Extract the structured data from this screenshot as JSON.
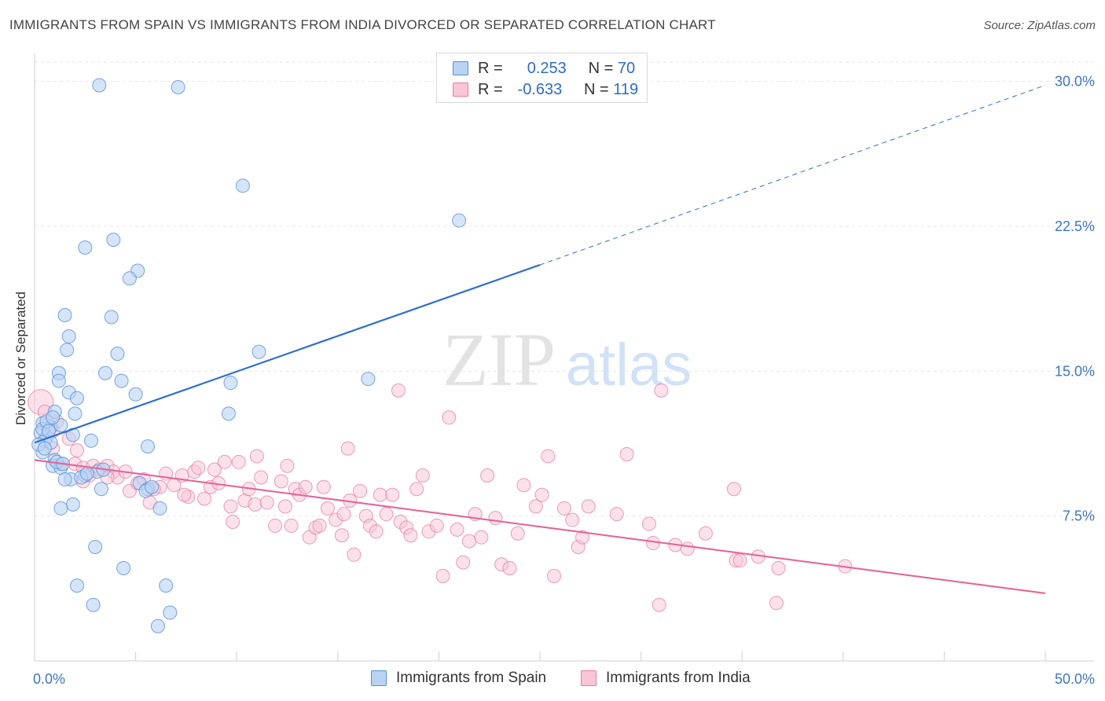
{
  "title": "IMMIGRANTS FROM SPAIN VS IMMIGRANTS FROM INDIA DIVORCED OR SEPARATED CORRELATION CHART",
  "source": "Source: ZipAtlas.com",
  "watermark": {
    "zip": "ZIP",
    "atlas": "atlas"
  },
  "legend": {
    "r_label": "R =",
    "n_label": "N =",
    "spain": {
      "r": "0.253",
      "n": "70"
    },
    "india": {
      "r": "-0.633",
      "n": "119"
    }
  },
  "colors": {
    "spain_fill": "#b9d3f3",
    "spain_stroke": "#5a8ed8",
    "spain_line": "#2f6fce",
    "india_fill": "#f8c6d6",
    "india_stroke": "#e67c9f",
    "india_line": "#e4679a",
    "axis_label": "#3f75c9"
  },
  "chart_data": {
    "type": "scatter",
    "title": "IMMIGRANTS FROM SPAIN VS IMMIGRANTS FROM INDIA DIVORCED OR SEPARATED CORRELATION CHART",
    "xlabel": "",
    "ylabel": "Divorced or Separated",
    "xlim": [
      0,
      50
    ],
    "ylim": [
      0,
      31
    ],
    "x_tick_labels": [
      "0.0%",
      "50.0%"
    ],
    "y_ticks": [
      7.5,
      15.0,
      22.5,
      30.0
    ],
    "y_tick_labels": [
      "7.5%",
      "15.0%",
      "22.5%",
      "30.0%"
    ],
    "grid": true,
    "legend_position": "top-center",
    "series": [
      {
        "name": "Immigrants from Spain",
        "trend": {
          "x": [
            0,
            25
          ],
          "y": [
            11.3,
            20.5
          ],
          "dashed_to": [
            50,
            29.8
          ]
        },
        "points": [
          [
            3.2,
            29.8
          ],
          [
            7.1,
            29.7
          ],
          [
            10.3,
            24.6
          ],
          [
            21.0,
            22.8
          ],
          [
            2.5,
            21.4
          ],
          [
            3.9,
            21.8
          ],
          [
            5.1,
            20.2
          ],
          [
            4.7,
            19.8
          ],
          [
            1.5,
            17.9
          ],
          [
            3.8,
            17.8
          ],
          [
            1.7,
            16.8
          ],
          [
            1.6,
            16.1
          ],
          [
            4.1,
            15.9
          ],
          [
            11.1,
            16.0
          ],
          [
            1.2,
            14.9
          ],
          [
            3.5,
            14.9
          ],
          [
            1.2,
            14.5
          ],
          [
            4.3,
            14.5
          ],
          [
            9.7,
            14.4
          ],
          [
            16.5,
            14.6
          ],
          [
            1.7,
            13.9
          ],
          [
            5.0,
            13.8
          ],
          [
            2.1,
            13.6
          ],
          [
            1.0,
            12.9
          ],
          [
            2.0,
            12.8
          ],
          [
            9.6,
            12.8
          ],
          [
            0.4,
            12.3
          ],
          [
            0.8,
            12.1
          ],
          [
            1.3,
            12.2
          ],
          [
            0.3,
            11.8
          ],
          [
            0.6,
            11.6
          ],
          [
            1.9,
            11.7
          ],
          [
            0.5,
            11.4
          ],
          [
            0.8,
            11.3
          ],
          [
            2.8,
            11.4
          ],
          [
            0.4,
            10.8
          ],
          [
            5.6,
            11.1
          ],
          [
            1.0,
            10.4
          ],
          [
            0.9,
            10.1
          ],
          [
            1.3,
            10.0
          ],
          [
            3.1,
            9.8
          ],
          [
            2.5,
            9.6
          ],
          [
            1.8,
            9.4
          ],
          [
            2.3,
            9.5
          ],
          [
            1.5,
            9.4
          ],
          [
            5.2,
            9.2
          ],
          [
            5.6,
            8.9
          ],
          [
            3.3,
            8.9
          ],
          [
            5.5,
            8.8
          ],
          [
            1.9,
            8.1
          ],
          [
            1.3,
            7.9
          ],
          [
            6.2,
            7.9
          ],
          [
            3.0,
            5.9
          ],
          [
            4.4,
            4.8
          ],
          [
            2.1,
            3.9
          ],
          [
            6.5,
            3.9
          ],
          [
            2.9,
            2.9
          ],
          [
            6.7,
            2.5
          ],
          [
            6.1,
            1.8
          ],
          [
            0.4,
            12.0
          ],
          [
            0.6,
            12.4
          ],
          [
            0.2,
            11.2
          ],
          [
            1.1,
            10.3
          ],
          [
            0.7,
            11.9
          ],
          [
            2.6,
            9.7
          ],
          [
            5.8,
            9.0
          ],
          [
            1.4,
            10.2
          ],
          [
            0.9,
            12.6
          ],
          [
            0.5,
            11.0
          ],
          [
            3.4,
            9.9
          ]
        ]
      },
      {
        "name": "Immigrants from India",
        "trend": {
          "x": [
            0,
            50
          ],
          "y": [
            10.4,
            3.5
          ]
        },
        "points": [
          [
            0.3,
            13.4
          ],
          [
            0.5,
            12.9
          ],
          [
            0.6,
            12.2
          ],
          [
            0.9,
            11.9
          ],
          [
            1.1,
            12.4
          ],
          [
            1.7,
            11.5
          ],
          [
            0.9,
            11.0
          ],
          [
            2.1,
            10.9
          ],
          [
            2.0,
            10.2
          ],
          [
            2.4,
            10.0
          ],
          [
            2.9,
            10.1
          ],
          [
            3.2,
            9.9
          ],
          [
            3.6,
            10.1
          ],
          [
            3.9,
            9.8
          ],
          [
            2.7,
            9.6
          ],
          [
            4.1,
            9.5
          ],
          [
            4.5,
            9.8
          ],
          [
            4.7,
            8.8
          ],
          [
            5.1,
            9.2
          ],
          [
            5.4,
            9.4
          ],
          [
            5.7,
            8.2
          ],
          [
            6.2,
            9.0
          ],
          [
            6.5,
            9.7
          ],
          [
            6.9,
            9.1
          ],
          [
            7.3,
            9.6
          ],
          [
            7.6,
            8.5
          ],
          [
            7.9,
            9.8
          ],
          [
            8.1,
            10.0
          ],
          [
            8.4,
            8.4
          ],
          [
            8.7,
            9.0
          ],
          [
            9.1,
            9.2
          ],
          [
            9.4,
            10.3
          ],
          [
            9.7,
            8.0
          ],
          [
            9.8,
            7.2
          ],
          [
            10.1,
            10.3
          ],
          [
            10.4,
            8.3
          ],
          [
            10.6,
            8.9
          ],
          [
            10.9,
            8.1
          ],
          [
            11.2,
            9.5
          ],
          [
            11.5,
            8.2
          ],
          [
            11.9,
            7.0
          ],
          [
            12.2,
            9.3
          ],
          [
            12.4,
            8.0
          ],
          [
            12.7,
            7.0
          ],
          [
            12.9,
            8.9
          ],
          [
            13.1,
            8.6
          ],
          [
            13.4,
            9.0
          ],
          [
            13.6,
            6.4
          ],
          [
            13.9,
            6.9
          ],
          [
            14.1,
            7.0
          ],
          [
            14.3,
            9.0
          ],
          [
            14.5,
            7.9
          ],
          [
            14.9,
            7.3
          ],
          [
            15.2,
            6.5
          ],
          [
            15.3,
            7.6
          ],
          [
            15.5,
            11.0
          ],
          [
            15.6,
            8.3
          ],
          [
            15.8,
            5.5
          ],
          [
            16.1,
            8.8
          ],
          [
            16.4,
            7.5
          ],
          [
            16.6,
            7.0
          ],
          [
            16.9,
            6.7
          ],
          [
            17.1,
            8.6
          ],
          [
            17.4,
            7.6
          ],
          [
            17.7,
            8.6
          ],
          [
            18.0,
            14.0
          ],
          [
            18.1,
            7.2
          ],
          [
            18.4,
            6.9
          ],
          [
            18.6,
            6.5
          ],
          [
            18.9,
            8.9
          ],
          [
            19.2,
            9.6
          ],
          [
            19.5,
            6.7
          ],
          [
            19.9,
            7.0
          ],
          [
            20.2,
            4.4
          ],
          [
            20.5,
            12.6
          ],
          [
            20.9,
            6.8
          ],
          [
            21.2,
            5.1
          ],
          [
            21.5,
            6.2
          ],
          [
            21.8,
            7.6
          ],
          [
            22.1,
            6.4
          ],
          [
            22.4,
            9.6
          ],
          [
            22.8,
            7.4
          ],
          [
            23.1,
            5.0
          ],
          [
            23.5,
            4.8
          ],
          [
            23.9,
            6.6
          ],
          [
            24.2,
            9.1
          ],
          [
            24.8,
            8.0
          ],
          [
            25.1,
            8.6
          ],
          [
            25.4,
            10.6
          ],
          [
            25.7,
            4.4
          ],
          [
            26.2,
            7.9
          ],
          [
            26.6,
            7.3
          ],
          [
            26.9,
            5.9
          ],
          [
            27.1,
            6.4
          ],
          [
            27.4,
            8.0
          ],
          [
            28.8,
            7.6
          ],
          [
            29.3,
            10.7
          ],
          [
            30.4,
            7.1
          ],
          [
            30.6,
            6.1
          ],
          [
            30.9,
            2.9
          ],
          [
            31.0,
            14.0
          ],
          [
            31.7,
            6.0
          ],
          [
            32.3,
            5.8
          ],
          [
            33.2,
            6.6
          ],
          [
            34.6,
            8.9
          ],
          [
            34.7,
            5.2
          ],
          [
            34.9,
            5.2
          ],
          [
            35.8,
            5.4
          ],
          [
            36.7,
            3.0
          ],
          [
            36.8,
            4.8
          ],
          [
            40.1,
            4.9
          ],
          [
            1.3,
            10.2
          ],
          [
            2.4,
            9.3
          ],
          [
            3.6,
            9.5
          ],
          [
            5.9,
            8.9
          ],
          [
            7.4,
            8.6
          ],
          [
            11.0,
            10.6
          ],
          [
            12.5,
            10.1
          ],
          [
            8.9,
            9.9
          ]
        ]
      }
    ]
  }
}
